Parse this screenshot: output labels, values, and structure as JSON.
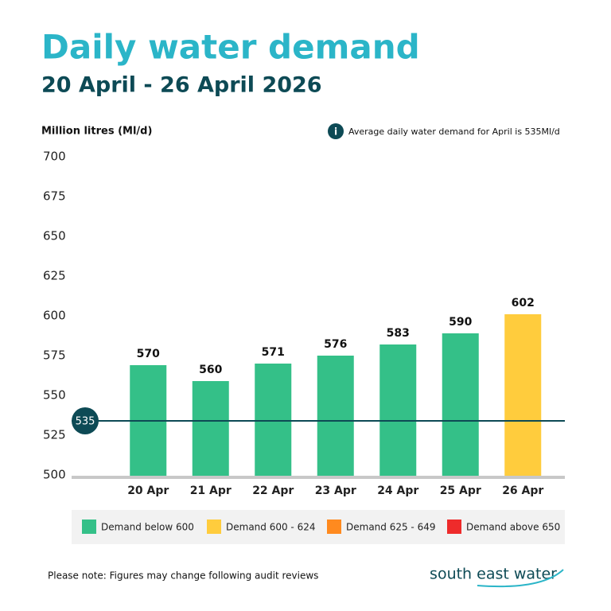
{
  "chart_data": {
    "type": "bar",
    "title": "Daily water demand",
    "subtitle": "20 April - 26 April 2026",
    "y_label": "Million litres (Ml/d)",
    "annotation": "Average daily water demand for April is 535Ml/d",
    "categories": [
      "20 Apr",
      "21 Apr",
      "22 Apr",
      "23 Apr",
      "24 Apr",
      "25 Apr",
      "26 Apr"
    ],
    "values": [
      570,
      560,
      571,
      576,
      583,
      590,
      602
    ],
    "colors": [
      "#34c088",
      "#34c088",
      "#34c088",
      "#34c088",
      "#34c088",
      "#34c088",
      "#ffcc3d"
    ],
    "ylim": [
      500,
      700
    ],
    "yticks": [
      500,
      525,
      550,
      575,
      600,
      625,
      650,
      675,
      700
    ],
    "reference_line": {
      "value": 535,
      "color": "#0d4a55"
    },
    "legend": [
      {
        "label": "Demand below 600",
        "color": "#34c088"
      },
      {
        "label": "Demand 600 - 624",
        "color": "#ffcc3d"
      },
      {
        "label": "Demand 625 - 649",
        "color": "#ff8a1f"
      },
      {
        "label": "Demand above 650",
        "color": "#ee2b2b"
      }
    ],
    "note": "Please note: Figures may change following audit reviews",
    "brand": "south east water"
  }
}
